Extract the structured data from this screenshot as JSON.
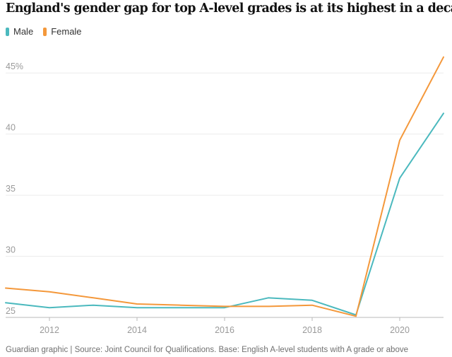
{
  "chart_data": {
    "type": "line",
    "title": "England's gender gap for top A-level grades is at its highest in a decade",
    "xlabel": "",
    "ylabel": "",
    "x": [
      2011,
      2012,
      2013,
      2014,
      2015,
      2016,
      2017,
      2018,
      2019,
      2020,
      2021
    ],
    "series": [
      {
        "name": "Male",
        "color": "#4bb9be",
        "values": [
          26.2,
          25.8,
          26.0,
          25.8,
          25.8,
          25.8,
          26.6,
          26.4,
          25.2,
          36.4,
          41.7
        ]
      },
      {
        "name": "Female",
        "color": "#f4983b",
        "values": [
          27.4,
          27.1,
          26.6,
          26.1,
          26.0,
          25.9,
          25.9,
          26.0,
          25.1,
          39.5,
          46.3
        ]
      }
    ],
    "ylim": [
      25,
      47.5
    ],
    "xlim": [
      2011,
      2021
    ],
    "yticks": [
      {
        "value": 25,
        "label": "25"
      },
      {
        "value": 30,
        "label": "30"
      },
      {
        "value": 35,
        "label": "35"
      },
      {
        "value": 40,
        "label": "40"
      },
      {
        "value": 45,
        "label": "45%"
      }
    ],
    "xticks": [
      {
        "value": 2012,
        "label": "2012"
      },
      {
        "value": 2014,
        "label": "2014"
      },
      {
        "value": 2016,
        "label": "2016"
      },
      {
        "value": 2018,
        "label": "2018"
      },
      {
        "value": 2020,
        "label": "2020"
      }
    ],
    "grid": true,
    "legend": "top-left"
  },
  "footer": "Guardian graphic | Source: Joint Council for Qualifications. Base: English A-level students with A grade or above"
}
